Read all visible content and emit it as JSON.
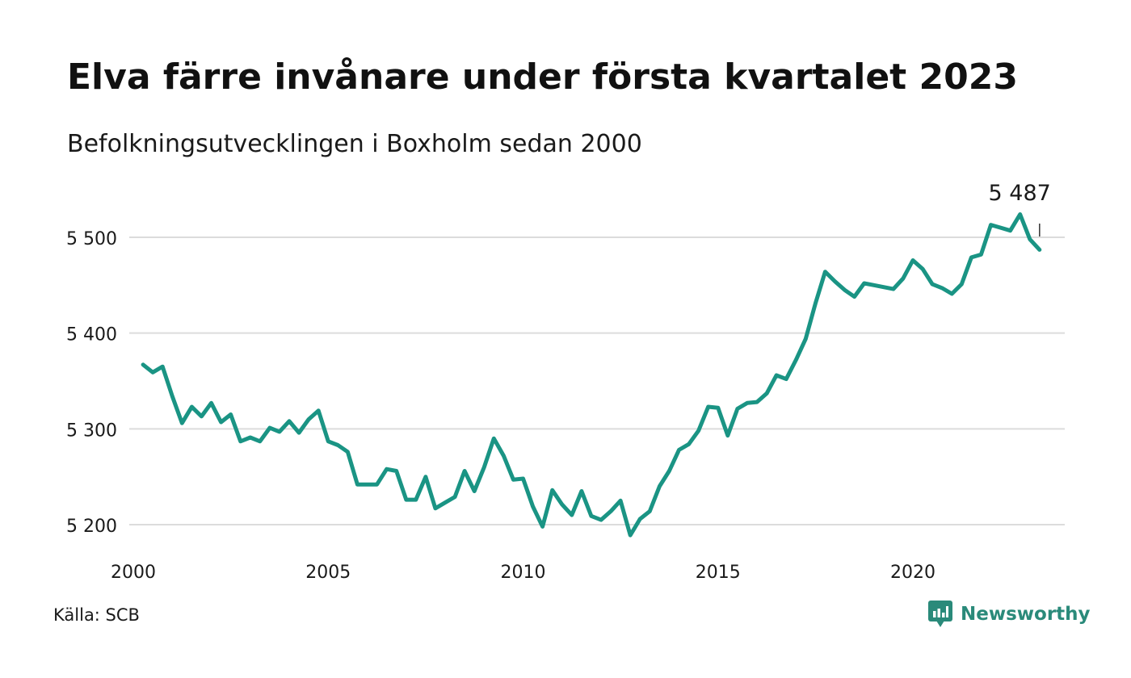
{
  "title": "Elva färre invånare under första kvartalet 2023",
  "subtitle": "Befolkningsutvecklingen i Boxholm sedan 2000",
  "source": "Källa: SCB",
  "logo_text": "Newsworthy",
  "colors": {
    "line": "#1a9484",
    "grid": "#dcdcdc",
    "logo": "#2a8a7a"
  },
  "chart_data": {
    "type": "line",
    "x_start": 2000.25,
    "x_step": 0.25,
    "xlim": [
      2000,
      2023.5
    ],
    "ylim": [
      5185,
      5530
    ],
    "y_ticks": [
      5200,
      5300,
      5400,
      5500
    ],
    "y_tick_labels": [
      "5 200",
      "5 300",
      "5 400",
      "5 500"
    ],
    "x_ticks": [
      2000,
      2005,
      2010,
      2015,
      2020
    ],
    "x_tick_labels": [
      "2000",
      "2005",
      "2010",
      "2015",
      "2020"
    ],
    "grid": "horizontal",
    "values": [
      5367,
      5359,
      5365,
      5334,
      5306,
      5323,
      5313,
      5327,
      5307,
      5315,
      5287,
      5291,
      5287,
      5301,
      5297,
      5308,
      5296,
      5310,
      5319,
      5287,
      5283,
      5276,
      5242,
      5242,
      5242,
      5258,
      5256,
      5226,
      5226,
      5250,
      5217,
      5223,
      5229,
      5256,
      5235,
      5260,
      5290,
      5272,
      5247,
      5248,
      5219,
      5198,
      5236,
      5221,
      5210,
      5235,
      5209,
      5205,
      5214,
      5225,
      5189,
      5206,
      5214,
      5240,
      5256,
      5278,
      5284,
      5298,
      5323,
      5322,
      5293,
      5321,
      5327,
      5328,
      5337,
      5356,
      5352,
      5372,
      5394,
      5431,
      5464,
      5454,
      5445,
      5438,
      5452,
      5450,
      5448,
      5446,
      5457,
      5476,
      5467,
      5451,
      5447,
      5441,
      5451,
      5479,
      5482,
      5513,
      5510,
      5507,
      5524,
      5498,
      5487
    ],
    "last_label": "5 487"
  }
}
